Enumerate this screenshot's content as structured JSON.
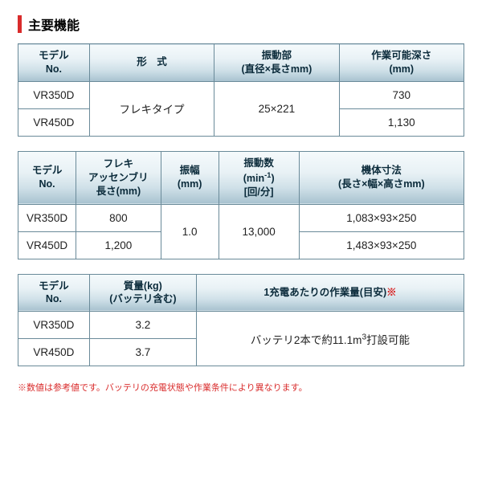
{
  "title": "主要機能",
  "colors": {
    "accent_red": "#d92b2b",
    "border": "#6a8a99",
    "header_gradient": [
      "#f5fafc",
      "#e8f1f5",
      "#cfe0e8",
      "#a8c2cf"
    ],
    "header_text": "#0a2a3a",
    "cell_bg": "#ffffff",
    "cell_text": "#222222",
    "footnote": "#d92b2b"
  },
  "table1": {
    "headers": {
      "model": "モデル\nNo.",
      "type": "形　式",
      "vibration": "振動部\n(直径×長さmm)",
      "depth": "作業可能深さ\n(mm)"
    },
    "rows": [
      {
        "model": "VR350D",
        "depth": "730"
      },
      {
        "model": "VR450D",
        "depth": "1,130"
      }
    ],
    "type_value": "フレキタイプ",
    "vibration_value": "25×221"
  },
  "table2": {
    "headers": {
      "model": "モデル\nNo.",
      "assembly": "フレキ\nアッセンブリ\n長さ(mm)",
      "amplitude": "振幅\n(mm)",
      "frequency_l1": "振動数",
      "frequency_l2": "(min",
      "frequency_sup": "-1",
      "frequency_l3": ")",
      "frequency_l4": "[回/分]",
      "size": "機体寸法\n(長さ×幅×高さmm)"
    },
    "rows": [
      {
        "model": "VR350D",
        "assembly": "800",
        "size": "1,083×93×250"
      },
      {
        "model": "VR450D",
        "assembly": "1,200",
        "size": "1,483×93×250"
      }
    ],
    "amplitude_value": "1.0",
    "frequency_value": "13,000"
  },
  "table3": {
    "headers": {
      "model": "モデル\nNo.",
      "mass": "質量(kg)\n(バッテリ含む)",
      "work": "1充電あたりの作業量(目安)",
      "asterisk": "※"
    },
    "rows": [
      {
        "model": "VR350D",
        "mass": "3.2"
      },
      {
        "model": "VR450D",
        "mass": "3.7"
      }
    ],
    "work_prefix": "バッテリ2本で約11.1m",
    "work_sup": "3",
    "work_suffix": "打設可能"
  },
  "footnote": "※数値は参考値です。バッテリの充電状態や作業条件により異なります。"
}
